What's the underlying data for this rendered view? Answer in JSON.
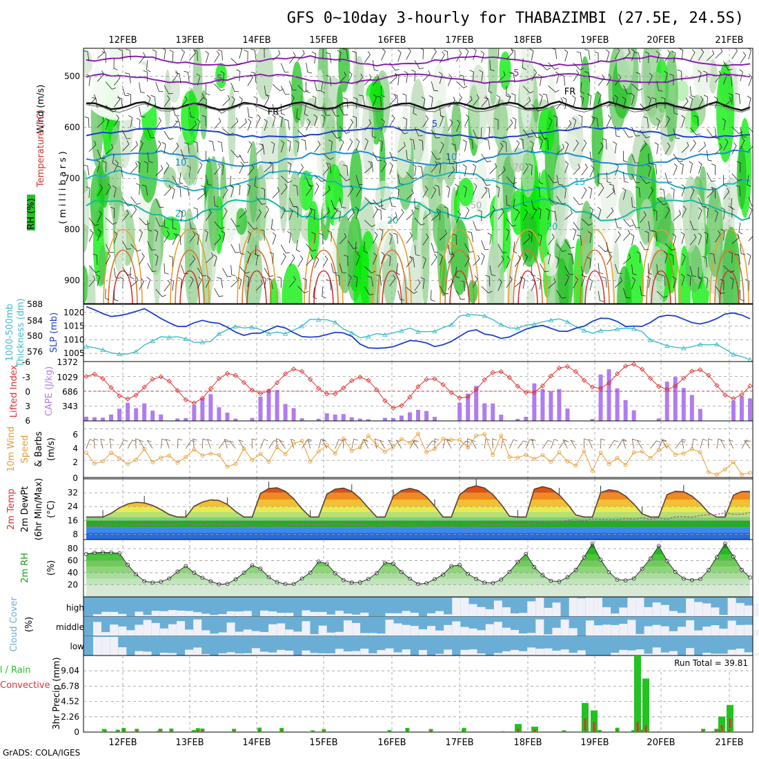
{
  "title": "GFS 0~10day 3-hourly for THABAZIMBI (27.5E, 24.5S)",
  "dates": [
    "12FEB",
    "13FEB",
    "14FEB",
    "15FEB",
    "16FEB",
    "17FEB",
    "18FEB",
    "19FEB",
    "20FEB",
    "21FEB"
  ],
  "footer": "GrADS: COLA/IGES",
  "run_total_label": "Run Total = 39.81",
  "colors": {
    "rh_green": "#22c222",
    "bright_green": "#00ee00",
    "grid": "#999999",
    "slp": "#1a3fd0",
    "thickness": "#3cbcc8",
    "lifted": "#e03030",
    "cape": "#b07cf0",
    "wind": "#e89a30",
    "precip_total": "#22c222",
    "precip_conv": "#e03030",
    "cloud": "#6aaed6",
    "cloud_clear": "#f0f0f8",
    "purple": "#8a1fb0"
  },
  "panels": {
    "upper": {
      "labels": [
        "Wind (m/s)",
        "Temperature (°C)",
        "RH (%)"
      ],
      "axis_label": "(millibars)",
      "yticks": [
        "500",
        "600",
        "700",
        "800",
        "900"
      ],
      "contour_labels": [
        "-5",
        "-5",
        "FR",
        "FR",
        "5",
        "10",
        "10",
        "15",
        "15",
        "20",
        "20",
        "20",
        "25",
        "50",
        "70"
      ]
    },
    "slp": {
      "left_label1": "1000-500mb",
      "left_label2": "Thickness (dm)",
      "right_label": "SLP (mb)",
      "left_ticks": [
        "588",
        "584",
        "580",
        "576"
      ],
      "right_ticks": [
        "1020",
        "1015",
        "1010",
        "1005"
      ]
    },
    "cape": {
      "left_label": "Lifted Index",
      "right_label": "CAPE (J/kg)",
      "left_ticks": [
        "-6",
        "-3",
        "0",
        "3",
        "6"
      ],
      "right_ticks": [
        "1372",
        "1029",
        "686",
        "343"
      ]
    },
    "wind": {
      "label1": "10m Wind",
      "label2": "Speed",
      "label3": "& Barbs",
      "unit": "(m/s)",
      "yticks": [
        "6",
        "4",
        "2",
        "0"
      ]
    },
    "temp": {
      "label1": "2m Temp",
      "label2": "2m DewPt",
      "label3": "(6hr Min/Max)",
      "unit": "(°C)",
      "yticks": [
        "32",
        "24",
        "16",
        "8"
      ]
    },
    "rh": {
      "label": "2m RH",
      "unit": "(%)",
      "yticks": [
        "80",
        "60",
        "40",
        "20"
      ]
    },
    "cloud": {
      "label": "Cloud Cover",
      "unit": "(%)",
      "levels": [
        "high",
        "middle",
        "low"
      ]
    },
    "precip": {
      "label_total": "Total / Rain",
      "label_conv": "Convective",
      "axis_label": "3hr Precip (mm)",
      "yticks": [
        "9.04",
        "6.78",
        "4.52",
        "2.26",
        "0"
      ]
    }
  },
  "chart_data": [
    {
      "type": "area",
      "name": "upper_air_cross_section",
      "y_axis": "pressure (mb)",
      "ylim": [
        445,
        945
      ],
      "temperature_contours_C": [
        -5,
        0,
        5,
        10,
        15,
        20,
        25
      ],
      "rh_shading": true,
      "wind_barbs": true
    },
    {
      "type": "line",
      "name": "slp_thickness",
      "x": [
        "12FEB",
        "13FEB",
        "14FEB",
        "15FEB",
        "16FEB",
        "17FEB",
        "18FEB",
        "19FEB",
        "20FEB",
        "21FEB"
      ],
      "series": [
        {
          "name": "SLP (mb)",
          "values": [
            1020.5,
            1016,
            1013,
            1012,
            1007,
            1011,
            1013,
            1016,
            1017,
            1018
          ]
        },
        {
          "name": "Thickness (dm)",
          "values": [
            576.5,
            580,
            582,
            584,
            580,
            585,
            584,
            583,
            579,
            576
          ]
        }
      ]
    },
    {
      "type": "bar",
      "name": "cape_lifted_index",
      "x": [
        "12FEB",
        "13FEB",
        "14FEB",
        "15FEB",
        "16FEB",
        "17FEB",
        "18FEB",
        "19FEB",
        "20FEB",
        "21FEB"
      ],
      "series": [
        {
          "name": "CAPE (J/kg)",
          "values": [
            450,
            400,
            950,
            200,
            100,
            750,
            700,
            1250,
            1100,
            600
          ]
        },
        {
          "name": "Lifted Index",
          "values": [
            -1,
            0,
            -2,
            -2,
            1,
            -1,
            -2,
            -3,
            -3,
            -1
          ]
        }
      ]
    },
    {
      "type": "line",
      "name": "wind_10m",
      "x": [
        "12FEB",
        "13FEB",
        "14FEB",
        "15FEB",
        "16FEB",
        "17FEB",
        "18FEB",
        "19FEB",
        "20FEB",
        "21FEB"
      ],
      "series": [
        {
          "name": "Speed",
          "values": [
            2,
            2,
            3,
            3,
            4,
            5,
            3,
            2,
            3,
            1
          ]
        }
      ]
    },
    {
      "type": "area",
      "name": "temp_2m",
      "x": [
        "12FEB",
        "13FEB",
        "14FEB",
        "15FEB",
        "16FEB",
        "17FEB",
        "18FEB",
        "19FEB",
        "20FEB",
        "21FEB"
      ],
      "series": [
        {
          "name": "2m Temp",
          "values": [
            27,
            25,
            35,
            35,
            34,
            36,
            36,
            34,
            33,
            33
          ]
        },
        {
          "name": "2m DewPt",
          "values": [
            13,
            14,
            13,
            14,
            13,
            12,
            14,
            17,
            17,
            20
          ]
        }
      ],
      "ylim": [
        5,
        40
      ]
    },
    {
      "type": "area",
      "name": "rh_2m",
      "x": [
        "12FEB",
        "13FEB",
        "14FEB",
        "15FEB",
        "16FEB",
        "17FEB",
        "18FEB",
        "19FEB",
        "20FEB",
        "21FEB"
      ],
      "series": [
        {
          "name": "2m RH",
          "values": [
            72,
            52,
            56,
            63,
            62,
            58,
            70,
            88,
            85,
            90
          ]
        }
      ],
      "ylim": [
        0,
        95
      ]
    },
    {
      "type": "heatmap",
      "name": "cloud_cover",
      "rows": [
        "high",
        "middle",
        "low"
      ]
    },
    {
      "type": "bar",
      "name": "precip_3hr",
      "categories": [
        "18FEB",
        "18FEB+",
        "19FEB",
        "19FEB+",
        "20FEB-",
        "20FEB",
        "21FEB",
        "21FEB+"
      ],
      "series": [
        {
          "name": "Total / Rain",
          "values": [
            1.2,
            0.8,
            4.3,
            3.2,
            11.2,
            7.9,
            2.3,
            4.0
          ]
        },
        {
          "name": "Convective",
          "values": [
            0.5,
            0.4,
            2.0,
            1.5,
            1.5,
            1.0,
            1.0,
            2.0
          ]
        }
      ],
      "ylim": [
        0,
        11.3
      ],
      "run_total": 39.81
    }
  ]
}
